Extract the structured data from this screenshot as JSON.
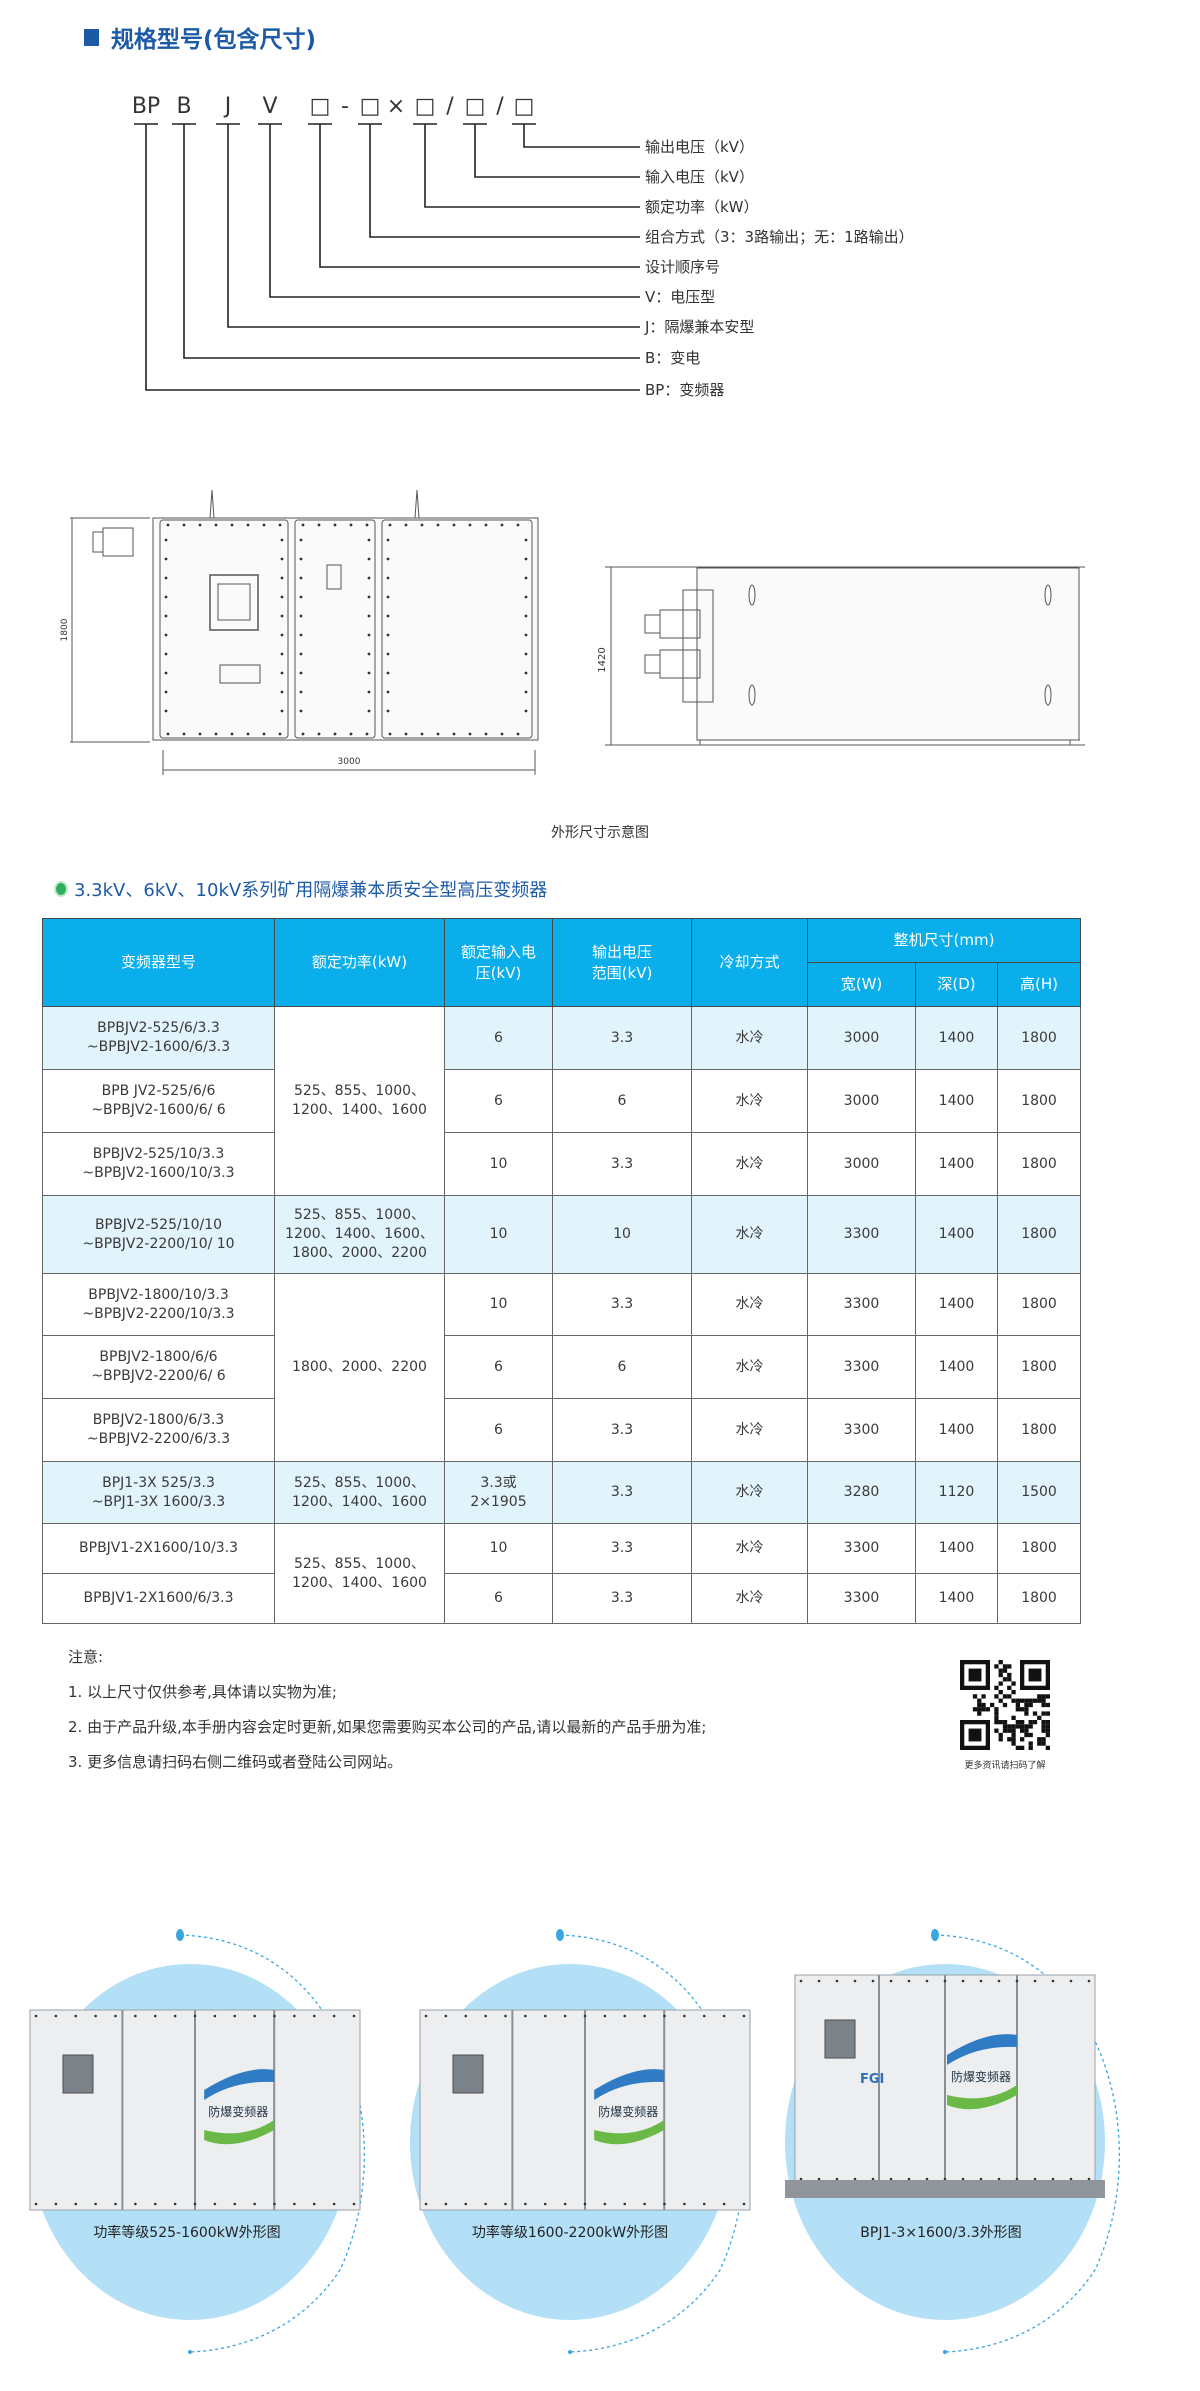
{
  "section_title": "规格型号(包含尺寸)",
  "model_code": {
    "parts": [
      "BP",
      "B",
      "J",
      "V",
      "□",
      "-",
      "□",
      "×",
      "□",
      "/",
      "□",
      "/",
      "□"
    ],
    "labels": [
      "输出电压（kV）",
      "输入电压（kV）",
      "额定功率（kW）",
      "组合方式（3：3路输出；无：1路输出）",
      "设计顺序号",
      "V：电压型",
      "J：隔爆兼本安型",
      "B：变电",
      "BP：变频器"
    ]
  },
  "drawing": {
    "width_dim": "3000",
    "height_dim": "1800",
    "depth_dim": "1420",
    "caption": "外形尺寸示意图"
  },
  "table_title": "3.3kV、6kV、10kV系列矿用隔爆兼本质安全型高压变频器",
  "table": {
    "headers": {
      "model": "变频器型号",
      "power": "额定功率(kW)",
      "input_voltage": "额定输入电\n压(kV)",
      "output_voltage": "输出电压\n范围(kV)",
      "cooling": "冷却方式",
      "size_group": "整机尺寸(mm)",
      "width": "宽(W)",
      "depth": "深(D)",
      "height": "高(H)"
    },
    "power_groups": [
      "525、855、1000、\n1200、1400、1600",
      "525、855、1000、\n1200、1400、1600、\n1800、2000、2200",
      "1800、2000、2200",
      "525、855、1000、\n1200、1400、1600",
      "525、855、1000、\n1200、1400、1600"
    ],
    "rows": [
      {
        "model": "BPBJV2-525/6/3.3\n~BPBJV2-1600/6/3.3",
        "input": "6",
        "output": "3.3",
        "cooling": "水冷",
        "w": "3000",
        "d": "1400",
        "h": "1800"
      },
      {
        "model": "BPB JV2-525/6/6\n~BPBJV2-1600/6/ 6",
        "input": "6",
        "output": "6",
        "cooling": "水冷",
        "w": "3000",
        "d": "1400",
        "h": "1800"
      },
      {
        "model": "BPBJV2-525/10/3.3\n~BPBJV2-1600/10/3.3",
        "input": "10",
        "output": "3.3",
        "cooling": "水冷",
        "w": "3000",
        "d": "1400",
        "h": "1800"
      },
      {
        "model": "BPBJV2-525/10/10\n~BPBJV2-2200/10/ 10",
        "input": "10",
        "output": "10",
        "cooling": "水冷",
        "w": "3300",
        "d": "1400",
        "h": "1800"
      },
      {
        "model": "BPBJV2-1800/10/3.3\n~BPBJV2-2200/10/3.3",
        "input": "10",
        "output": "3.3",
        "cooling": "水冷",
        "w": "3300",
        "d": "1400",
        "h": "1800"
      },
      {
        "model": "BPBJV2-1800/6/6\n~BPBJV2-2200/6/ 6",
        "input": "6",
        "output": "6",
        "cooling": "水冷",
        "w": "3300",
        "d": "1400",
        "h": "1800"
      },
      {
        "model": "BPBJV2-1800/6/3.3\n~BPBJV2-2200/6/3.3",
        "input": "6",
        "output": "3.3",
        "cooling": "水冷",
        "w": "3300",
        "d": "1400",
        "h": "1800"
      },
      {
        "model": "BPJ1-3X 525/3.3\n~BPJ1-3X 1600/3.3",
        "input": "3.3或\n2×1905",
        "output": "3.3",
        "cooling": "水冷",
        "w": "3280",
        "d": "1120",
        "h": "1500"
      },
      {
        "model": "BPBJV1-2X1600/10/3.3",
        "input": "10",
        "output": "3.3",
        "cooling": "水冷",
        "w": "3300",
        "d": "1400",
        "h": "1800"
      },
      {
        "model": "BPBJV1-2X1600/6/3.3",
        "input": "6",
        "output": "3.3",
        "cooling": "水冷",
        "w": "3300",
        "d": "1400",
        "h": "1800"
      }
    ]
  },
  "notes": {
    "title": "注意:",
    "items": [
      "1. 以上尺寸仅供参考,具体请以实物为准;",
      "2. 由于产品升级,本手册内容会定时更新,如果您需要购买本公司的产品,请以最新的产品手册为准;",
      "3. 更多信息请扫码右侧二维码或者登陆公司网站。"
    ],
    "qr_caption": "更多资讯请扫码了解"
  },
  "products": [
    {
      "caption": "功率等级525-1600kW外形图",
      "logo_text": "防爆变频器"
    },
    {
      "caption": "功率等级1600-2200kW外形图",
      "logo_text": "防爆变频器"
    },
    {
      "caption": "BPJ1-3×1600/3.3外形图",
      "logo_text": "防爆变频器",
      "brand": "FGI"
    }
  ],
  "colors": {
    "heading_blue": "#1d5aa6",
    "table_header": "#0aaeea",
    "row_shade": "#e1f3fb",
    "bullet_green": "#2fae5e",
    "circle_blue": "#b3e0f7"
  }
}
